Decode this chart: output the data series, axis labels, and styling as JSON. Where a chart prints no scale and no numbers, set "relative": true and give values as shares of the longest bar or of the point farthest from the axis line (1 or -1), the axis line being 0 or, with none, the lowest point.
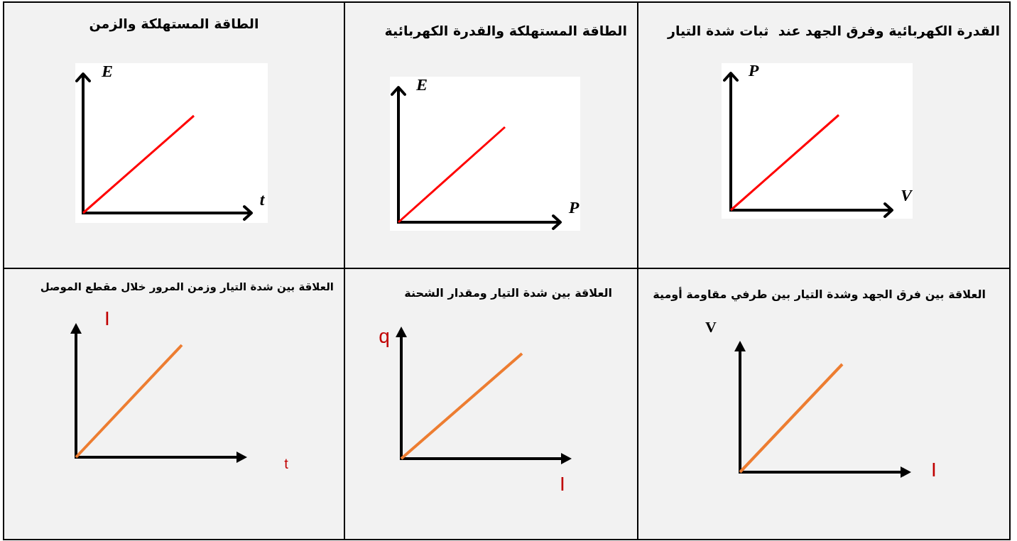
{
  "chart_data": [
    {
      "type": "line",
      "title": "القدرة الكهربائية وفرق الجهد عند  ثبات شدة التيار",
      "xlabel": "V",
      "ylabel": "P",
      "relative": true,
      "categories": [
        null,
        null
      ],
      "series": [
        {
          "color": "#ff0000",
          "values": [
            0,
            1
          ]
        }
      ]
    },
    {
      "type": "line",
      "title": "الطاقة المستهلكة والقدرة الكهربائية",
      "xlabel": "P",
      "ylabel": "E",
      "relative": true,
      "categories": [
        null,
        null
      ],
      "series": [
        {
          "color": "#ff0000",
          "values": [
            0,
            1
          ]
        }
      ]
    },
    {
      "type": "line",
      "title": "الطاقة المستهلكة والزمن",
      "xlabel": "t",
      "ylabel": "E",
      "relative": true,
      "categories": [
        null,
        null
      ],
      "series": [
        {
          "color": "#ff0000",
          "values": [
            0,
            1
          ]
        }
      ]
    },
    {
      "type": "line",
      "title": "العلاقة بين فرق الجهد وشدة التيار بين طرفي مقاومة أومية",
      "xlabel": "I",
      "ylabel": "V",
      "relative": true,
      "categories": [
        null,
        null
      ],
      "series": [
        {
          "color": "#ed7d31",
          "values": [
            0,
            1
          ]
        }
      ]
    },
    {
      "type": "line",
      "title": "العلاقة بين شدة التيار ومقدار الشحنة",
      "xlabel": "I",
      "ylabel": "q",
      "relative": true,
      "categories": [
        null,
        null
      ],
      "series": [
        {
          "color": "#ed7d31",
          "values": [
            0,
            1
          ]
        }
      ]
    },
    {
      "type": "line",
      "title": "العلاقة بين شدة التيار وزمن المرور خلال مقطع الموصل",
      "xlabel": "t",
      "ylabel": "I",
      "relative": true,
      "categories": [
        null,
        null
      ],
      "series": [
        {
          "color": "#ed7d31",
          "values": [
            0,
            1
          ]
        }
      ]
    }
  ]
}
